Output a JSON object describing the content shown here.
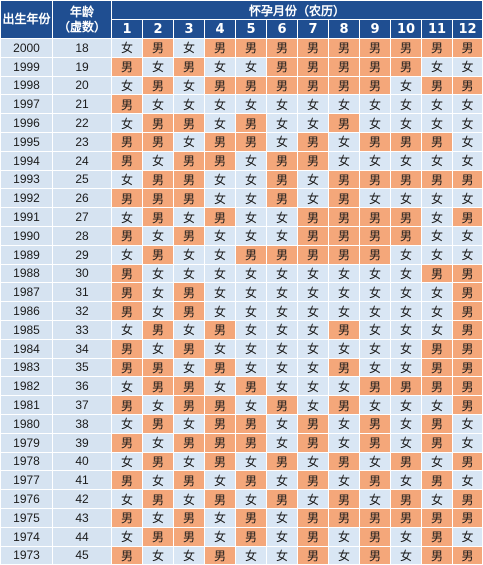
{
  "header": {
    "year_title": "出生年份",
    "age_title": [
      "年龄",
      "（虚数）"
    ],
    "month_title": "怀孕月份（农历）",
    "months": [
      "1",
      "2",
      "3",
      "4",
      "5",
      "6",
      "7",
      "8",
      "9",
      "10",
      "11",
      "12"
    ]
  },
  "legend": {
    "boy": "男",
    "girl": "女"
  },
  "colors": {
    "header": "#1f4e91",
    "boy": "#f4a77a",
    "girl": "#d9e6f4",
    "label_cell": "#d6e3f1"
  },
  "rows": [
    {
      "year": "2000",
      "age": "18",
      "cells": [
        "女",
        "男",
        "女",
        "男",
        "男",
        "男",
        "男",
        "男",
        "男",
        "男",
        "男",
        "男"
      ]
    },
    {
      "year": "1999",
      "age": "19",
      "cells": [
        "男",
        "女",
        "男",
        "女",
        "女",
        "男",
        "男",
        "男",
        "男",
        "男",
        "女",
        "女"
      ]
    },
    {
      "year": "1998",
      "age": "20",
      "cells": [
        "女",
        "男",
        "女",
        "男",
        "男",
        "男",
        "男",
        "男",
        "男",
        "女",
        "男",
        "男"
      ]
    },
    {
      "year": "1997",
      "age": "21",
      "cells": [
        "男",
        "女",
        "女",
        "女",
        "女",
        "女",
        "女",
        "女",
        "女",
        "女",
        "女",
        "女"
      ]
    },
    {
      "year": "1996",
      "age": "22",
      "cells": [
        "女",
        "男",
        "男",
        "女",
        "男",
        "女",
        "女",
        "男",
        "女",
        "女",
        "女",
        "女"
      ]
    },
    {
      "year": "1995",
      "age": "23",
      "cells": [
        "男",
        "男",
        "女",
        "男",
        "男",
        "女",
        "男",
        "女",
        "男",
        "男",
        "男",
        "女"
      ]
    },
    {
      "year": "1994",
      "age": "24",
      "cells": [
        "男",
        "女",
        "男",
        "男",
        "女",
        "男",
        "男",
        "女",
        "女",
        "女",
        "女",
        "女"
      ]
    },
    {
      "year": "1993",
      "age": "25",
      "cells": [
        "女",
        "男",
        "男",
        "女",
        "女",
        "男",
        "女",
        "男",
        "男",
        "男",
        "男",
        "男"
      ]
    },
    {
      "year": "1992",
      "age": "26",
      "cells": [
        "男",
        "男",
        "男",
        "女",
        "女",
        "男",
        "女",
        "男",
        "女",
        "女",
        "女",
        "女"
      ]
    },
    {
      "year": "1991",
      "age": "27",
      "cells": [
        "女",
        "男",
        "女",
        "男",
        "女",
        "女",
        "男",
        "男",
        "男",
        "男",
        "女",
        "男"
      ]
    },
    {
      "year": "1990",
      "age": "28",
      "cells": [
        "男",
        "女",
        "男",
        "女",
        "女",
        "女",
        "男",
        "男",
        "男",
        "男",
        "女",
        "女"
      ]
    },
    {
      "year": "1989",
      "age": "29",
      "cells": [
        "女",
        "男",
        "女",
        "女",
        "男",
        "男",
        "男",
        "男",
        "男",
        "女",
        "女",
        "女"
      ]
    },
    {
      "year": "1988",
      "age": "30",
      "cells": [
        "男",
        "女",
        "女",
        "女",
        "女",
        "女",
        "女",
        "女",
        "女",
        "女",
        "男",
        "男"
      ]
    },
    {
      "year": "1987",
      "age": "31",
      "cells": [
        "男",
        "女",
        "男",
        "女",
        "女",
        "女",
        "女",
        "女",
        "女",
        "女",
        "女",
        "男"
      ]
    },
    {
      "year": "1986",
      "age": "32",
      "cells": [
        "男",
        "女",
        "男",
        "女",
        "女",
        "女",
        "女",
        "女",
        "女",
        "女",
        "女",
        "男"
      ]
    },
    {
      "year": "1985",
      "age": "33",
      "cells": [
        "女",
        "男",
        "女",
        "男",
        "女",
        "女",
        "女",
        "男",
        "女",
        "女",
        "女",
        "男"
      ]
    },
    {
      "year": "1984",
      "age": "34",
      "cells": [
        "男",
        "女",
        "男",
        "女",
        "女",
        "女",
        "女",
        "女",
        "女",
        "女",
        "男",
        "男"
      ]
    },
    {
      "year": "1983",
      "age": "35",
      "cells": [
        "男",
        "男",
        "女",
        "男",
        "女",
        "女",
        "女",
        "男",
        "女",
        "女",
        "男",
        "男"
      ]
    },
    {
      "year": "1982",
      "age": "36",
      "cells": [
        "女",
        "男",
        "男",
        "女",
        "男",
        "女",
        "女",
        "女",
        "男",
        "男",
        "男",
        "男"
      ]
    },
    {
      "year": "1981",
      "age": "37",
      "cells": [
        "男",
        "女",
        "男",
        "男",
        "女",
        "男",
        "女",
        "男",
        "女",
        "女",
        "女",
        "男"
      ]
    },
    {
      "year": "1980",
      "age": "38",
      "cells": [
        "女",
        "男",
        "女",
        "男",
        "男",
        "女",
        "男",
        "女",
        "男",
        "女",
        "男",
        "女"
      ]
    },
    {
      "year": "1979",
      "age": "39",
      "cells": [
        "男",
        "女",
        "男",
        "男",
        "男",
        "女",
        "男",
        "女",
        "男",
        "女",
        "男",
        "女"
      ]
    },
    {
      "year": "1978",
      "age": "40",
      "cells": [
        "女",
        "男",
        "女",
        "男",
        "女",
        "男",
        "女",
        "男",
        "女",
        "男",
        "女",
        "男"
      ]
    },
    {
      "year": "1977",
      "age": "41",
      "cells": [
        "男",
        "女",
        "男",
        "女",
        "男",
        "女",
        "男",
        "女",
        "男",
        "女",
        "男",
        "女"
      ]
    },
    {
      "year": "1976",
      "age": "42",
      "cells": [
        "女",
        "男",
        "女",
        "男",
        "女",
        "男",
        "女",
        "男",
        "女",
        "男",
        "女",
        "男"
      ]
    },
    {
      "year": "1975",
      "age": "43",
      "cells": [
        "男",
        "女",
        "男",
        "女",
        "男",
        "女",
        "男",
        "男",
        "男",
        "男",
        "男",
        "男"
      ]
    },
    {
      "year": "1974",
      "age": "44",
      "cells": [
        "女",
        "男",
        "男",
        "女",
        "男",
        "女",
        "男",
        "女",
        "男",
        "女",
        "男",
        "女"
      ]
    },
    {
      "year": "1973",
      "age": "45",
      "cells": [
        "男",
        "女",
        "女",
        "男",
        "女",
        "女",
        "男",
        "女",
        "男",
        "女",
        "男",
        "男"
      ]
    }
  ]
}
